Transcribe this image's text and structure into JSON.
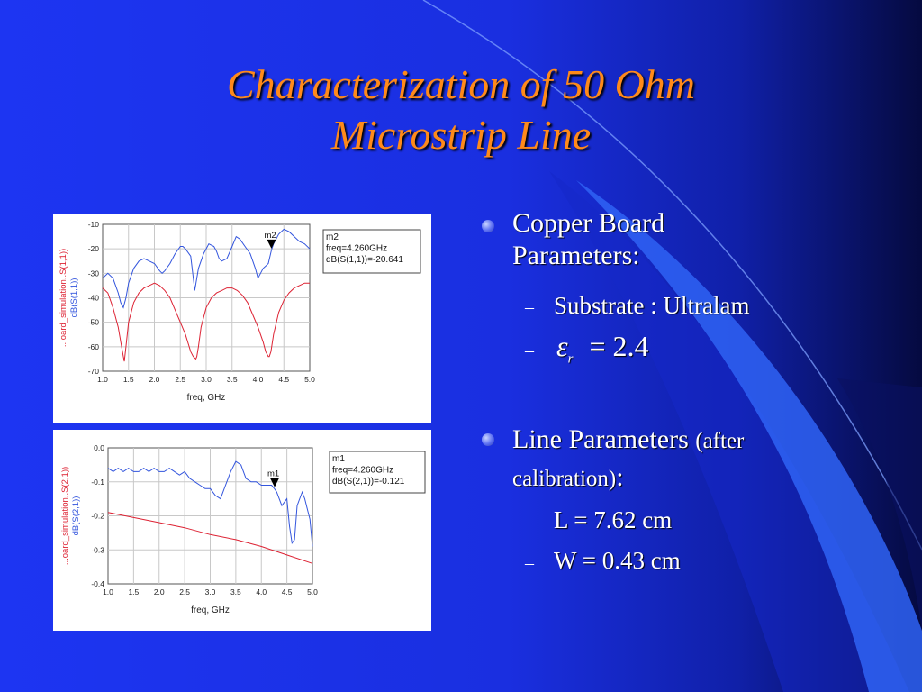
{
  "slide": {
    "title_line1": "Characterization of 50 Ohm",
    "title_line2": "Microstrip Line",
    "bullets": [
      {
        "text": "Copper Board",
        "text2": "Parameters:"
      },
      {
        "text": "Line Parameters",
        "paren": "(after",
        "text2": "calibration)",
        "colon": ":"
      }
    ],
    "sub_bullets": [
      "Substrate : Ultralam",
      "= 2.4",
      "L = 7.62 cm",
      "W = 0.43 cm"
    ],
    "epsilon_symbol": "ε",
    "epsilon_subscript": "r",
    "dash": "–"
  },
  "chart_data": [
    {
      "type": "line",
      "xlabel": "freq, GHz",
      "ylabel_line1": "...oard_simulation..S(1,1))",
      "ylabel_line2": "dB(S(1,1))",
      "xlim": [
        1.0,
        5.0
      ],
      "ylim": [
        -70,
        -10
      ],
      "xticks": [
        "1.0",
        "1.5",
        "2.0",
        "2.5",
        "3.0",
        "3.5",
        "4.0",
        "4.5",
        "5.0"
      ],
      "yticks": [
        "-10",
        "-20",
        "-30",
        "-40",
        "-50",
        "-60",
        "-70"
      ],
      "series": [
        {
          "color": "#3355dd",
          "x": [
            1.0,
            1.1,
            1.2,
            1.3,
            1.35,
            1.4,
            1.45,
            1.5,
            1.6,
            1.7,
            1.8,
            1.9,
            2.0,
            2.1,
            2.15,
            2.2,
            2.3,
            2.4,
            2.5,
            2.55,
            2.6,
            2.7,
            2.78,
            2.85,
            2.95,
            3.05,
            3.15,
            3.2,
            3.25,
            3.3,
            3.4,
            3.5,
            3.58,
            3.65,
            3.75,
            3.85,
            3.95,
            4.0,
            4.05,
            4.1,
            4.15,
            4.2,
            4.26,
            4.3,
            4.4,
            4.5,
            4.6,
            4.7,
            4.8,
            4.9,
            5.0
          ],
          "y": [
            -32,
            -30,
            -32,
            -38,
            -42,
            -44,
            -40,
            -34,
            -28,
            -25,
            -24,
            -25,
            -26,
            -29,
            -30,
            -29,
            -26,
            -22,
            -19,
            -19,
            -20,
            -23,
            -37,
            -28,
            -22,
            -18,
            -19,
            -21,
            -24,
            -25,
            -24,
            -19,
            -15,
            -16,
            -19,
            -22,
            -28,
            -32,
            -30,
            -28,
            -27,
            -26,
            -20.64,
            -18,
            -14,
            -12,
            -13,
            -15,
            -17,
            -18,
            -20
          ]
        },
        {
          "color": "#dd2233",
          "x": [
            1.0,
            1.1,
            1.2,
            1.3,
            1.35,
            1.4,
            1.42,
            1.45,
            1.5,
            1.6,
            1.7,
            1.8,
            1.9,
            2.0,
            2.1,
            2.2,
            2.3,
            2.4,
            2.5,
            2.6,
            2.7,
            2.75,
            2.8,
            2.82,
            2.85,
            2.9,
            3.0,
            3.1,
            3.2,
            3.3,
            3.4,
            3.5,
            3.6,
            3.7,
            3.8,
            3.9,
            4.0,
            4.1,
            4.15,
            4.2,
            4.22,
            4.25,
            4.3,
            4.4,
            4.5,
            4.6,
            4.7,
            4.8,
            4.9,
            5.0
          ],
          "y": [
            -36,
            -38,
            -44,
            -52,
            -58,
            -64,
            -66,
            -60,
            -50,
            -42,
            -38,
            -36,
            -35,
            -34,
            -35,
            -37,
            -40,
            -45,
            -50,
            -55,
            -62,
            -64,
            -65,
            -64,
            -60,
            -52,
            -44,
            -40,
            -38,
            -37,
            -36,
            -36,
            -37,
            -39,
            -42,
            -47,
            -52,
            -58,
            -62,
            -64,
            -64,
            -62,
            -55,
            -46,
            -41,
            -38,
            -36,
            -35,
            -34,
            -34
          ]
        }
      ],
      "marker": {
        "name": "m2",
        "x": 4.26,
        "y": -20.641,
        "readout": [
          "m2",
          "freq=4.260GHz",
          "dB(S(1,1))=-20.641"
        ]
      }
    },
    {
      "type": "line",
      "xlabel": "freq, GHz",
      "ylabel_line1": "...oard_simulation..S(2,1))",
      "ylabel_line2": "dB(S(2,1))",
      "xlim": [
        1.0,
        5.0
      ],
      "ylim": [
        -0.4,
        0.0
      ],
      "xticks": [
        "1.0",
        "1.5",
        "2.0",
        "2.5",
        "3.0",
        "3.5",
        "4.0",
        "4.5",
        "5.0"
      ],
      "yticks": [
        "0.0",
        "-0.1",
        "-0.2",
        "-0.3",
        "-0.4"
      ],
      "series": [
        {
          "color": "#3355dd",
          "x": [
            1.0,
            1.1,
            1.2,
            1.3,
            1.4,
            1.5,
            1.6,
            1.7,
            1.8,
            1.9,
            2.0,
            2.1,
            2.2,
            2.3,
            2.4,
            2.5,
            2.6,
            2.7,
            2.8,
            2.9,
            3.0,
            3.1,
            3.2,
            3.3,
            3.4,
            3.5,
            3.6,
            3.7,
            3.8,
            3.9,
            4.0,
            4.1,
            4.2,
            4.26,
            4.3,
            4.4,
            4.5,
            4.55,
            4.6,
            4.65,
            4.7,
            4.8,
            4.85,
            4.9,
            4.95,
            5.0
          ],
          "y": [
            -0.06,
            -0.07,
            -0.06,
            -0.07,
            -0.06,
            -0.07,
            -0.07,
            -0.06,
            -0.07,
            -0.06,
            -0.07,
            -0.07,
            -0.06,
            -0.07,
            -0.08,
            -0.07,
            -0.09,
            -0.1,
            -0.11,
            -0.12,
            -0.12,
            -0.14,
            -0.15,
            -0.11,
            -0.07,
            -0.04,
            -0.05,
            -0.09,
            -0.1,
            -0.1,
            -0.11,
            -0.11,
            -0.11,
            -0.121,
            -0.13,
            -0.17,
            -0.15,
            -0.23,
            -0.28,
            -0.27,
            -0.17,
            -0.13,
            -0.15,
            -0.18,
            -0.21,
            -0.29
          ]
        },
        {
          "color": "#dd2233",
          "x": [
            1.0,
            1.5,
            2.0,
            2.5,
            3.0,
            3.5,
            4.0,
            4.5,
            5.0
          ],
          "y": [
            -0.19,
            -0.205,
            -0.22,
            -0.235,
            -0.255,
            -0.27,
            -0.29,
            -0.315,
            -0.34
          ]
        }
      ],
      "marker": {
        "name": "m1",
        "x": 4.26,
        "y": -0.121,
        "readout": [
          "m1",
          "freq=4.260GHz",
          "dB(S(2,1))=-0.121"
        ]
      }
    }
  ]
}
